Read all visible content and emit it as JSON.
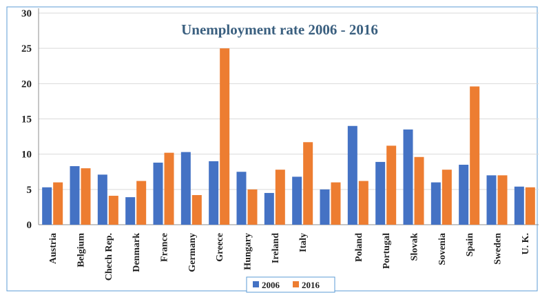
{
  "chart_data": {
    "type": "bar",
    "title": "Unemployment  rate 2006 - 2016",
    "categories": [
      "Austria",
      "Belgium",
      "Chech Rep.",
      "Denmark",
      "France",
      "Germany",
      "Greece",
      "Hungary",
      "Ireland",
      "Italy",
      "",
      "Poland",
      "Portugal",
      "Slovak",
      "Sovenia",
      "Spain",
      "Sweden",
      "U. K."
    ],
    "series": [
      {
        "name": "2006",
        "color": "#4472C4",
        "values": [
          5.3,
          8.3,
          7.1,
          3.9,
          8.8,
          10.3,
          9.0,
          7.5,
          4.5,
          6.8,
          5.0,
          14.0,
          8.9,
          13.5,
          6.0,
          8.5,
          7.0,
          5.4
        ]
      },
      {
        "name": "2016",
        "color": "#ED7D31",
        "values": [
          6.0,
          8.0,
          4.1,
          6.2,
          10.2,
          4.2,
          25.0,
          5.0,
          7.8,
          11.7,
          6.0,
          6.2,
          11.2,
          9.6,
          7.8,
          19.6,
          7.0,
          5.3
        ]
      }
    ],
    "yticks": [
      0,
      5,
      10,
      15,
      20,
      25,
      30
    ],
    "ylim": [
      0,
      30
    ],
    "grid": true,
    "legend": "bottom-center"
  }
}
